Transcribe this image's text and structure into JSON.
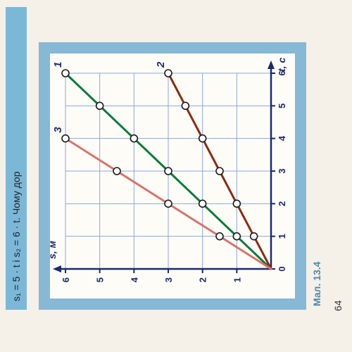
{
  "formula_frag": "s₁ = 5 · t  і  s₂ = 6 · t. Чому дор",
  "caption": "Мал. 13.4",
  "pagenum": "64",
  "chart": {
    "type": "line",
    "x_axis": {
      "label": "t, c",
      "min": 0,
      "max": 6,
      "tick_step": 1
    },
    "y_axis": {
      "label": "s, м",
      "min": 0,
      "max": 6,
      "tick_step": 1
    },
    "background_color": "#fdfcf7",
    "grid_color": "#8aa9e0",
    "axis_color": "#1a2a6c",
    "tick_font_size": 13,
    "label_font_size": 14,
    "line_width": 3,
    "marker_radius": 5,
    "marker_fill": "#ffffff",
    "marker_stroke": "#1a1a1a",
    "series": [
      {
        "id": "1",
        "label": "1",
        "color": "#0a7a3a",
        "points": [
          [
            0,
            0
          ],
          [
            1,
            1
          ],
          [
            2,
            2
          ],
          [
            3,
            3
          ],
          [
            4,
            4
          ],
          [
            5,
            5
          ],
          [
            6,
            6
          ]
        ]
      },
      {
        "id": "2",
        "label": "2",
        "color": "#8b2a10",
        "points": [
          [
            0,
            0
          ],
          [
            1,
            0.5
          ],
          [
            2,
            1
          ],
          [
            3,
            1.5
          ],
          [
            4,
            2
          ],
          [
            5,
            2.5
          ],
          [
            6,
            3
          ]
        ]
      },
      {
        "id": "3",
        "label": "3",
        "color": "#d8736a",
        "points": [
          [
            0,
            0
          ],
          [
            1,
            1.5
          ],
          [
            2,
            3
          ],
          [
            3,
            4.5
          ],
          [
            4,
            6
          ]
        ]
      }
    ],
    "series_label_color": "#1a2a6c",
    "series_label_fontsize": 15
  }
}
